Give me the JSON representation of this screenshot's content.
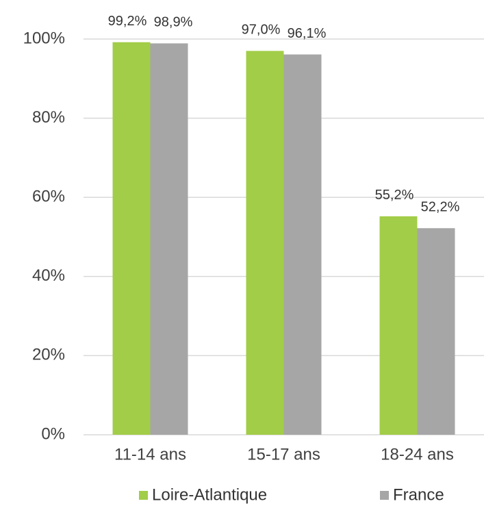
{
  "chart_data": {
    "type": "bar",
    "categories": [
      "11-14 ans",
      "15-17 ans",
      "18-24 ans"
    ],
    "series": [
      {
        "name": "Loire-Atlantique",
        "color": "#a2cd48",
        "values": [
          99.2,
          97.0,
          55.2
        ],
        "value_labels": [
          "99,2%",
          "97,0%",
          "55,2%"
        ]
      },
      {
        "name": "France",
        "color": "#a6a6a6",
        "values": [
          98.9,
          96.1,
          52.2
        ],
        "value_labels": [
          "98,9%",
          "96,1%",
          "52,2%"
        ]
      }
    ],
    "ylim": [
      0,
      100
    ],
    "yticks": [
      {
        "value": 0,
        "label": "0%"
      },
      {
        "value": 20,
        "label": "20%"
      },
      {
        "value": 40,
        "label": "40%"
      },
      {
        "value": 60,
        "label": "60%"
      },
      {
        "value": 80,
        "label": "80%"
      },
      {
        "value": 100,
        "label": "100%"
      }
    ],
    "grid": true,
    "legend": "bottom"
  }
}
